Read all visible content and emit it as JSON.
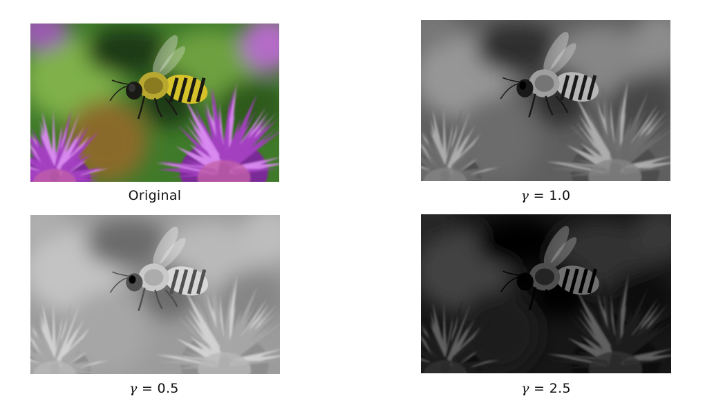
{
  "panels": [
    {
      "id": "original",
      "caption_text": "Original",
      "variant": "color",
      "gamma": null
    },
    {
      "id": "gamma-1-0",
      "caption_symbol": "γ",
      "caption_value": "= 1.0",
      "variant": "gray",
      "gamma": 1.0
    },
    {
      "id": "gamma-0-5",
      "caption_symbol": "γ",
      "caption_value": "= 0.5",
      "variant": "gray",
      "gamma": 0.5
    },
    {
      "id": "gamma-2-5",
      "caption_symbol": "γ",
      "caption_value": "= 2.5",
      "variant": "gray",
      "gamma": 2.5
    }
  ],
  "colors": {
    "bg_green": "#3f7a2a",
    "bg_green_light": "#7fb04a",
    "bg_dark": "#1f3a12",
    "flower": "#a23fc0",
    "flower_light": "#d98af0",
    "bee_yellow": "#d6c22a",
    "bee_dark": "#1a1a14"
  },
  "subject": {
    "image_icon": "bee-on-chive-flower-photo"
  }
}
